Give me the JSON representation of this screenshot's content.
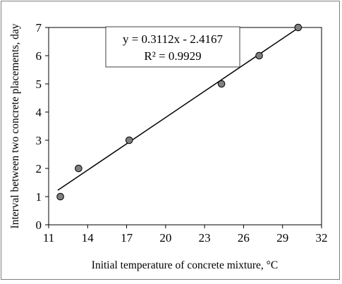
{
  "chart_data": {
    "type": "scatter",
    "xlabel": "Initial temperature of concrete mixture, °C",
    "ylabel": "Interval between two concrete placements, day",
    "xlim": [
      11,
      32
    ],
    "ylim": [
      0,
      7
    ],
    "x_ticks": [
      "11",
      "14",
      "17",
      "20",
      "23",
      "26",
      "29",
      "32"
    ],
    "y_ticks": [
      "0",
      "1",
      "2",
      "3",
      "4",
      "5",
      "6",
      "7"
    ],
    "grid": false,
    "legend": "none",
    "series": [
      {
        "points": [
          {
            "x": 11.9,
            "y": 1
          },
          {
            "x": 13.3,
            "y": 2
          },
          {
            "x": 17.2,
            "y": 3
          },
          {
            "x": 24.3,
            "y": 5
          },
          {
            "x": 27.2,
            "y": 6
          },
          {
            "x": 30.2,
            "y": 7
          }
        ],
        "marker_color": "#7f7f7f"
      }
    ],
    "trendline": {
      "type": "linear",
      "slope": 0.3112,
      "intercept": -2.4167,
      "x_range": [
        11.7,
        30.2
      ],
      "color": "#000000"
    },
    "annotation": {
      "equation": "y = 0.3112x - 2.4167",
      "r_squared": "R² = 0.9929"
    }
  }
}
